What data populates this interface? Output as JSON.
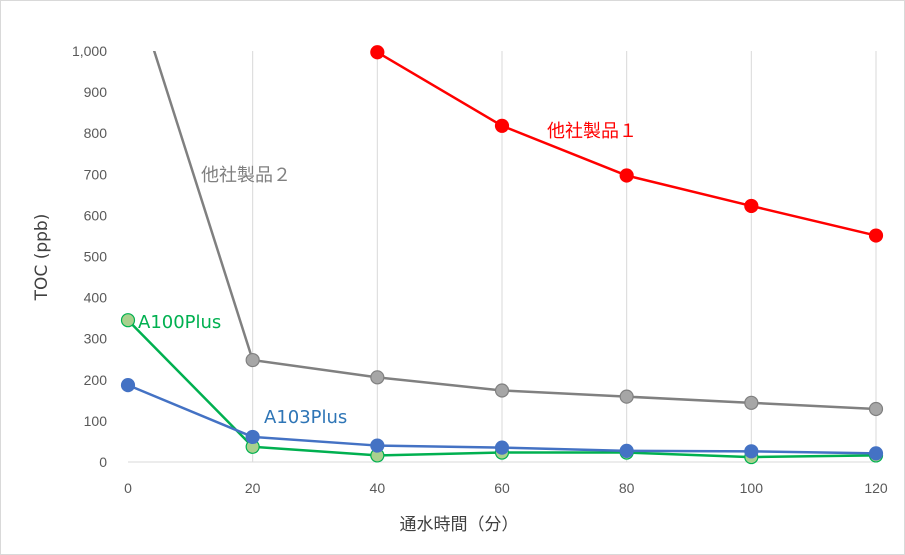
{
  "chart_data": {
    "type": "line",
    "title": "",
    "xlabel": "通水時間（分）",
    "ylabel": "TOC (ppb)",
    "xlim": [
      0,
      120
    ],
    "ylim": [
      0,
      1000
    ],
    "x_ticks": [
      "0",
      "20",
      "40",
      "60",
      "80",
      "100",
      "120"
    ],
    "y_ticks": [
      "0",
      "100",
      "200",
      "300",
      "400",
      "500",
      "600",
      "700",
      "800",
      "900",
      "1,000"
    ],
    "grid": "vertical",
    "legend": "none (inline labels)",
    "series": [
      {
        "name": "他社製品１",
        "color": "#ff0000",
        "marker_fill": "#ff0000",
        "x": [
          40,
          60,
          80,
          100,
          120
        ],
        "y": [
          997,
          818,
          697,
          623,
          551
        ]
      },
      {
        "name": "他社製品２",
        "color": "#808080",
        "marker_fill": "#a6a6a6",
        "x": [
          0,
          20,
          40,
          60,
          80,
          100,
          120
        ],
        "y": [
          1200,
          248,
          206,
          174,
          159,
          144,
          129
        ]
      },
      {
        "name": "A100Plus",
        "color": "#00b050",
        "marker_fill": "#a9d18e",
        "x": [
          0,
          20,
          40,
          60,
          80,
          100,
          120
        ],
        "y": [
          345,
          37,
          16,
          23,
          23,
          12,
          16
        ]
      },
      {
        "name": "A103Plus",
        "color": "#4472c4",
        "marker_fill": "#4472c4",
        "x": [
          0,
          20,
          40,
          60,
          80,
          100,
          120
        ],
        "y": [
          187,
          61,
          40,
          35,
          27,
          26,
          21
        ]
      }
    ]
  }
}
